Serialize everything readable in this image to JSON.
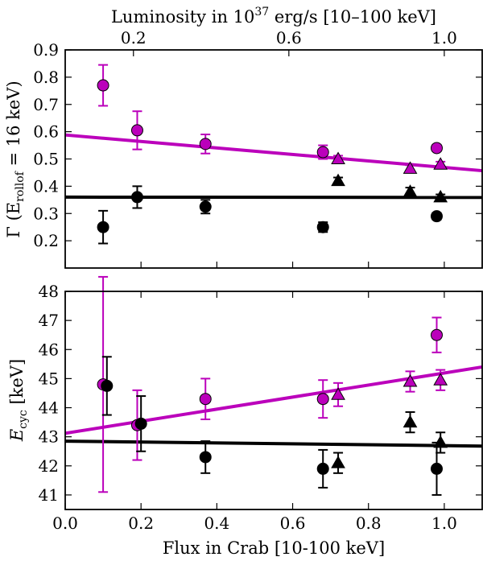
{
  "colors": {
    "magenta": "#bb00bb",
    "black": "#000000"
  },
  "chart_data": [
    {
      "type": "scatter",
      "id": "top",
      "title": "",
      "xlabel": "",
      "ylabel_main": "Γ (E",
      "ylabel_sub": "rollof",
      "ylabel_tail": " = 16 keV)",
      "xlim": [
        0.0,
        1.1
      ],
      "ylim": [
        0.1,
        0.9
      ],
      "yticks": [
        "0.2",
        "0.3",
        "0.4",
        "0.5",
        "0.6",
        "0.7",
        "0.8",
        "0.9"
      ],
      "top_axis": {
        "label_prefix": "Luminosity in 10",
        "label_sup": "37",
        "label_suffix": " erg/s [10–100 keV]",
        "ticks": [
          {
            "label": "0.2",
            "at_flux": 0.18
          },
          {
            "label": "0.6",
            "at_flux": 0.59
          },
          {
            "label": "1.0",
            "at_flux": 1.0
          }
        ]
      },
      "series": [
        {
          "name": "magenta circles",
          "color": "#bb00bb",
          "marker": "circle",
          "points": [
            {
              "x": 0.1,
              "y": 0.77,
              "err": 0.075
            },
            {
              "x": 0.19,
              "y": 0.605,
              "err": 0.07
            },
            {
              "x": 0.37,
              "y": 0.555,
              "err": 0.035
            },
            {
              "x": 0.68,
              "y": 0.525,
              "err": 0.025
            },
            {
              "x": 0.98,
              "y": 0.54,
              "err": 0.012
            }
          ]
        },
        {
          "name": "magenta triangles",
          "color": "#bb00bb",
          "marker": "triangle",
          "points": [
            {
              "x": 0.72,
              "y": 0.5,
              "err": 0.012
            },
            {
              "x": 0.91,
              "y": 0.465,
              "err": 0.012
            },
            {
              "x": 0.99,
              "y": 0.48,
              "err": 0.01
            }
          ]
        },
        {
          "name": "black circles",
          "color": "#000000",
          "marker": "circle",
          "points": [
            {
              "x": 0.1,
              "y": 0.25,
              "err": 0.06
            },
            {
              "x": 0.19,
              "y": 0.36,
              "err": 0.04
            },
            {
              "x": 0.37,
              "y": 0.325,
              "err": 0.025
            },
            {
              "x": 0.68,
              "y": 0.25,
              "err": 0.018
            },
            {
              "x": 0.98,
              "y": 0.29,
              "err": 0.012
            }
          ]
        },
        {
          "name": "black triangles",
          "color": "#000000",
          "marker": "triangle",
          "points": [
            {
              "x": 0.72,
              "y": 0.42,
              "err": 0.012
            },
            {
              "x": 0.91,
              "y": 0.38,
              "err": 0.015
            },
            {
              "x": 0.99,
              "y": 0.36,
              "err": 0.01
            }
          ]
        }
      ],
      "fits": [
        {
          "color": "#bb00bb",
          "x": [
            0.0,
            1.1
          ],
          "y": [
            0.588,
            0.457
          ]
        },
        {
          "color": "#000000",
          "x": [
            0.0,
            1.1
          ],
          "y": [
            0.36,
            0.359
          ]
        }
      ]
    },
    {
      "type": "scatter",
      "id": "bottom",
      "title": "",
      "xlabel": "Flux in Crab [10-100 keV]",
      "ylabel_main": "E",
      "ylabel_sub": "cyc",
      "ylabel_tail": " [keV]",
      "xlim": [
        0.0,
        1.1
      ],
      "ylim": [
        40.5,
        48.0
      ],
      "xticks": [
        "0.0",
        "0.2",
        "0.4",
        "0.6",
        "0.8",
        "1.0"
      ],
      "yticks": [
        "41",
        "42",
        "43",
        "44",
        "45",
        "46",
        "47",
        "48"
      ],
      "series": [
        {
          "name": "magenta circles",
          "color": "#bb00bb",
          "marker": "circle",
          "points": [
            {
              "x": 0.1,
              "y": 44.8,
              "err": 3.7
            },
            {
              "x": 0.19,
              "y": 43.4,
              "err": 1.2
            },
            {
              "x": 0.37,
              "y": 44.3,
              "err": 0.7
            },
            {
              "x": 0.68,
              "y": 44.3,
              "err": 0.65
            },
            {
              "x": 0.98,
              "y": 46.5,
              "err": 0.6
            }
          ]
        },
        {
          "name": "magenta triangles",
          "color": "#bb00bb",
          "marker": "triangle",
          "points": [
            {
              "x": 0.72,
              "y": 44.45,
              "err": 0.4
            },
            {
              "x": 0.91,
              "y": 44.9,
              "err": 0.35
            },
            {
              "x": 0.99,
              "y": 44.95,
              "err": 0.35
            }
          ]
        },
        {
          "name": "black circles",
          "color": "#000000",
          "marker": "circle",
          "points": [
            {
              "x": 0.11,
              "y": 44.75,
              "err": 1.0
            },
            {
              "x": 0.2,
              "y": 43.45,
              "err": 0.95
            },
            {
              "x": 0.37,
              "y": 42.3,
              "err": 0.55
            },
            {
              "x": 0.68,
              "y": 41.9,
              "err": 0.65
            },
            {
              "x": 0.98,
              "y": 41.9,
              "err": 0.9
            }
          ]
        },
        {
          "name": "black triangles",
          "color": "#000000",
          "marker": "triangle",
          "points": [
            {
              "x": 0.72,
              "y": 42.1,
              "err": 0.35
            },
            {
              "x": 0.91,
              "y": 43.5,
              "err": 0.35
            },
            {
              "x": 0.99,
              "y": 42.8,
              "err": 0.35
            }
          ]
        }
      ],
      "fits": [
        {
          "color": "#bb00bb",
          "x": [
            0.0,
            1.1
          ],
          "y": [
            43.12,
            45.4
          ]
        },
        {
          "color": "#000000",
          "x": [
            0.0,
            1.1
          ],
          "y": [
            42.85,
            42.68
          ]
        }
      ]
    }
  ]
}
